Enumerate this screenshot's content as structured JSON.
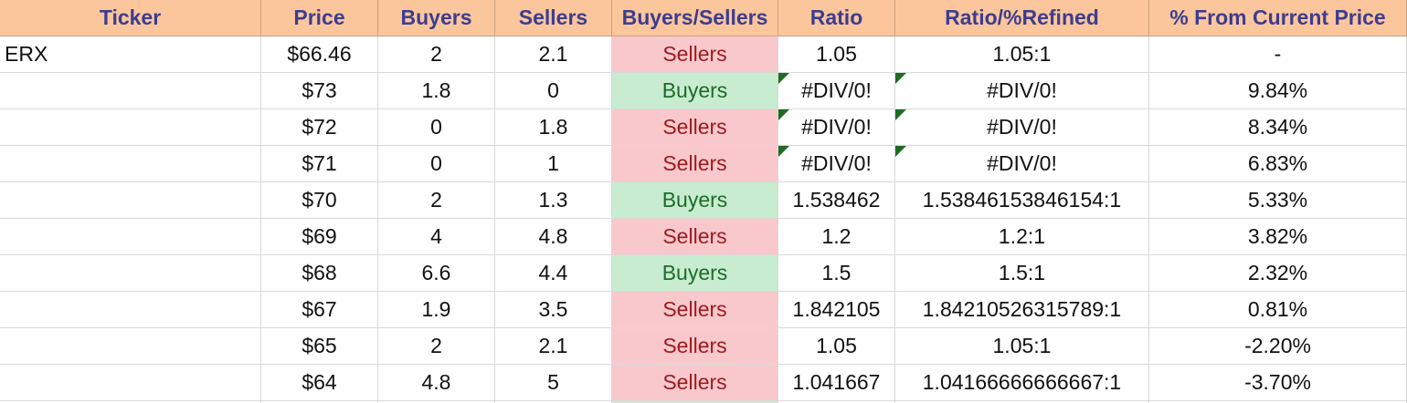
{
  "columns": [
    "Ticker",
    "Price",
    "Buyers",
    "Sellers",
    "Buyers/Sellers",
    "Ratio",
    "Ratio/%Refined",
    "% From Current Price"
  ],
  "rows": [
    {
      "ticker": "ERX",
      "price": "$66.46",
      "buyers": "2",
      "sellers": "2.1",
      "bs": "Sellers",
      "ratio": "1.05",
      "refined": "1.05:1",
      "pct": "-",
      "flag": false
    },
    {
      "ticker": "",
      "price": "$73",
      "buyers": "1.8",
      "sellers": "0",
      "bs": "Buyers",
      "ratio": "#DIV/0!",
      "refined": "#DIV/0!",
      "pct": "9.84%",
      "flag": true
    },
    {
      "ticker": "",
      "price": "$72",
      "buyers": "0",
      "sellers": "1.8",
      "bs": "Sellers",
      "ratio": "#DIV/0!",
      "refined": "#DIV/0!",
      "pct": "8.34%",
      "flag": true
    },
    {
      "ticker": "",
      "price": "$71",
      "buyers": "0",
      "sellers": "1",
      "bs": "Sellers",
      "ratio": "#DIV/0!",
      "refined": "#DIV/0!",
      "pct": "6.83%",
      "flag": true
    },
    {
      "ticker": "",
      "price": "$70",
      "buyers": "2",
      "sellers": "1.3",
      "bs": "Buyers",
      "ratio": "1.538462",
      "refined": "1.53846153846154:1",
      "pct": "5.33%",
      "flag": false
    },
    {
      "ticker": "",
      "price": "$69",
      "buyers": "4",
      "sellers": "4.8",
      "bs": "Sellers",
      "ratio": "1.2",
      "refined": "1.2:1",
      "pct": "3.82%",
      "flag": false
    },
    {
      "ticker": "",
      "price": "$68",
      "buyers": "6.6",
      "sellers": "4.4",
      "bs": "Buyers",
      "ratio": "1.5",
      "refined": "1.5:1",
      "pct": "2.32%",
      "flag": false
    },
    {
      "ticker": "",
      "price": "$67",
      "buyers": "1.9",
      "sellers": "3.5",
      "bs": "Sellers",
      "ratio": "1.842105",
      "refined": "1.84210526315789:1",
      "pct": "0.81%",
      "flag": false
    },
    {
      "ticker": "",
      "price": "$65",
      "buyers": "2",
      "sellers": "2.1",
      "bs": "Sellers",
      "ratio": "1.05",
      "refined": "1.05:1",
      "pct": "-2.20%",
      "flag": false
    },
    {
      "ticker": "",
      "price": "$64",
      "buyers": "4.8",
      "sellers": "5",
      "bs": "Sellers",
      "ratio": "1.041667",
      "refined": "1.04166666666667:1",
      "pct": "-3.70%",
      "flag": false
    }
  ],
  "colors": {
    "header_bg": "#fcc69c",
    "header_text": "#3d3d8f",
    "sellers_bg": "#f9c8cd",
    "sellers_text": "#9c1a1a",
    "buyers_bg": "#c7eccf",
    "buyers_text": "#1e6b2b",
    "error_flag": "#1f6b24"
  }
}
